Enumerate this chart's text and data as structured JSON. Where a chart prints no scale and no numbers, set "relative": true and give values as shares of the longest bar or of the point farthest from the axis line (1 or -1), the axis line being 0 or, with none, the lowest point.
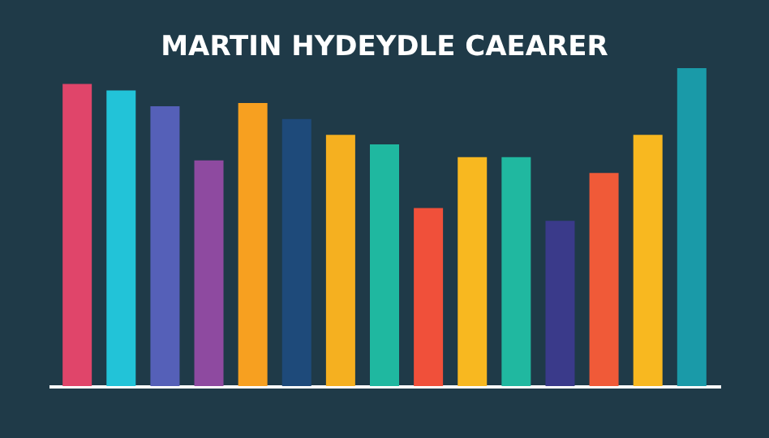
{
  "chart_data": {
    "type": "bar",
    "title": "MARTIN HYDEYDLE CAEARER",
    "relative": true,
    "categories": [
      null,
      null,
      null,
      null,
      null,
      null,
      null,
      null,
      null,
      null,
      null,
      null,
      null,
      null,
      null
    ],
    "values": [
      0.95,
      0.93,
      0.88,
      0.71,
      0.89,
      0.84,
      0.79,
      0.76,
      0.56,
      0.72,
      0.72,
      0.52,
      0.67,
      0.79,
      1
    ],
    "colors": [
      "#e0456a",
      "#22c3d8",
      "#5560b8",
      "#8e4aa0",
      "#f7a020",
      "#1e4a7a",
      "#f5b020",
      "#1fb8a0",
      "#f0503a",
      "#f8b820",
      "#20b8a0",
      "#3a3a8a",
      "#f05a38",
      "#f8b820",
      "#1a9aa8"
    ]
  }
}
